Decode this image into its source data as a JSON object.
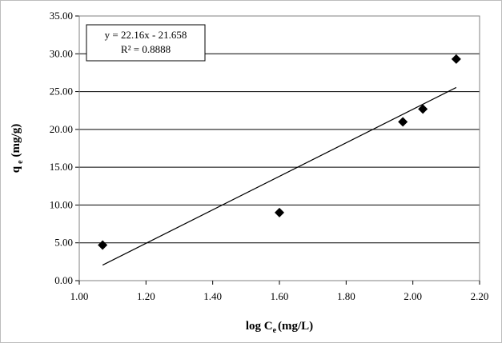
{
  "chart_data": {
    "type": "scatter",
    "x": [
      1.07,
      1.6,
      1.97,
      2.03,
      2.13
    ],
    "y": [
      4.7,
      9.0,
      21.0,
      22.7,
      29.3
    ],
    "xlim": [
      1.0,
      2.2
    ],
    "ylim": [
      0.0,
      35.0
    ],
    "x_ticks": [
      "1.00",
      "1.20",
      "1.40",
      "1.60",
      "1.80",
      "2.00",
      "2.20"
    ],
    "y_ticks": [
      "0.00",
      "5.00",
      "10.00",
      "15.00",
      "20.00",
      "25.00",
      "30.00",
      "35.00"
    ],
    "xlabel": {
      "main": "log C",
      "sub": "e",
      "unit": "(mg/L)"
    },
    "ylabel": {
      "main": "q",
      "sub": "e",
      "unit": "(mg/g)"
    },
    "grid": "horizontal",
    "trendline": {
      "slope": 22.16,
      "intercept": -21.658,
      "x_range": [
        1.07,
        2.13
      ],
      "equation": "y = 22.16x  - 21.658",
      "r_squared": "R² = 0.8888"
    },
    "colors": {
      "marker": "#000000",
      "line": "#000000",
      "grid": "#000000"
    }
  }
}
